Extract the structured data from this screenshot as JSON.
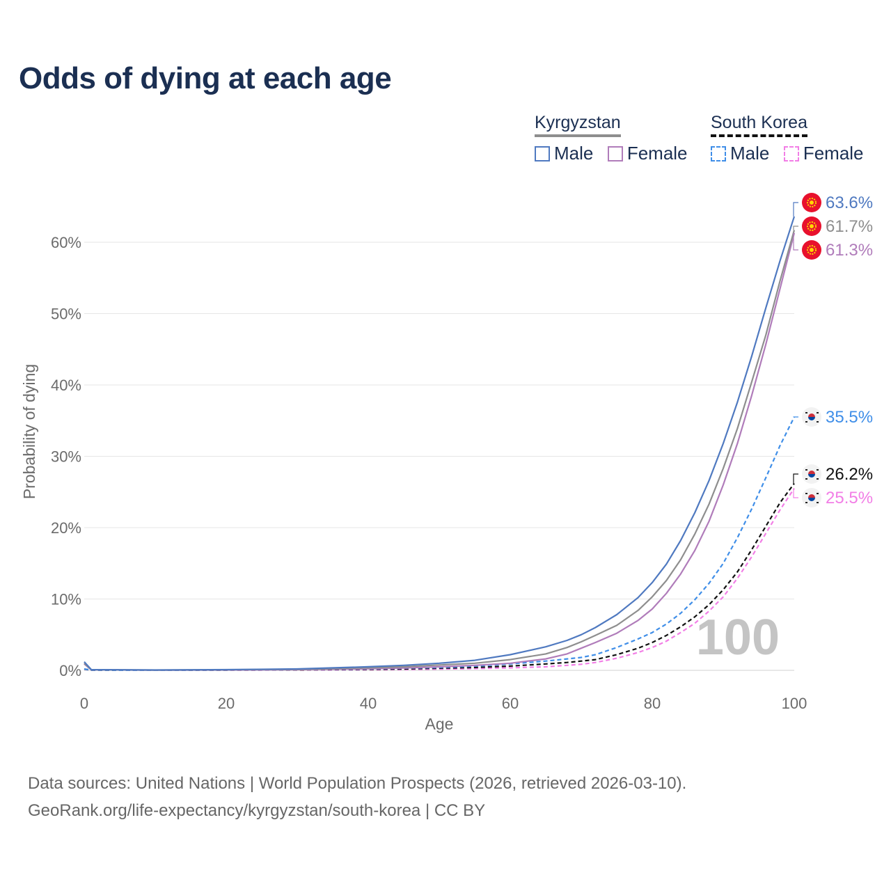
{
  "title": "Odds of dying at each age",
  "legend": {
    "groups": [
      {
        "country": "Kyrgyzstan",
        "country_line_color": "#8e8e8e",
        "items": [
          {
            "label": "Male",
            "color": "#4f79c0",
            "dashed": false
          },
          {
            "label": "Female",
            "color": "#b07cba",
            "dashed": false
          }
        ]
      },
      {
        "country": "South Korea",
        "country_line_color": "#111111",
        "items": [
          {
            "label": "Male",
            "color": "#3f8ee8",
            "dashed": true
          },
          {
            "label": "Female",
            "color": "#f27ee6",
            "dashed": true
          }
        ]
      }
    ]
  },
  "chart_data": {
    "type": "line",
    "title": "Odds of dying at each age",
    "xlabel": "Age",
    "ylabel": "Probability of dying",
    "xlim": [
      0,
      100
    ],
    "ylim": [
      0,
      65
    ],
    "x_ticks": [
      "0",
      "20",
      "40",
      "60",
      "80",
      "100"
    ],
    "x_tick_values": [
      0,
      20,
      40,
      60,
      80,
      100
    ],
    "y_ticks": [
      "0%",
      "10%",
      "20%",
      "30%",
      "40%",
      "50%",
      "60%"
    ],
    "y_tick_values": [
      0,
      10,
      20,
      30,
      40,
      50,
      60
    ],
    "grid": true,
    "x": [
      0,
      1,
      10,
      20,
      30,
      40,
      45,
      50,
      55,
      60,
      65,
      68,
      70,
      72,
      75,
      78,
      80,
      82,
      84,
      86,
      88,
      90,
      92,
      94,
      96,
      98,
      100
    ],
    "series": [
      {
        "name": "Kyrgyzstan Male",
        "color": "#4f79c0",
        "dashed": false,
        "values": [
          1.2,
          0.1,
          0.05,
          0.1,
          0.2,
          0.5,
          0.7,
          1.0,
          1.4,
          2.2,
          3.3,
          4.2,
          5.0,
          6.0,
          7.8,
          10.2,
          12.3,
          14.9,
          18.2,
          22.1,
          26.6,
          31.8,
          37.6,
          44.0,
          50.8,
          57.4,
          63.6
        ]
      },
      {
        "name": "Kyrgyzstan Total",
        "color": "#8e8e8e",
        "dashed": false,
        "values": [
          1.0,
          0.08,
          0.04,
          0.08,
          0.15,
          0.35,
          0.5,
          0.75,
          1.0,
          1.5,
          2.3,
          3.2,
          4.0,
          4.9,
          6.3,
          8.4,
          10.3,
          12.6,
          15.5,
          19.1,
          23.3,
          28.3,
          33.9,
          40.4,
          47.0,
          54.6,
          61.7
        ]
      },
      {
        "name": "Kyrgyzstan Female",
        "color": "#b07cba",
        "dashed": false,
        "values": [
          0.9,
          0.07,
          0.03,
          0.05,
          0.1,
          0.22,
          0.32,
          0.5,
          0.7,
          1.0,
          1.6,
          2.3,
          3.1,
          3.9,
          5.2,
          7.0,
          8.6,
          10.8,
          13.5,
          16.8,
          20.9,
          26.0,
          31.8,
          38.5,
          45.7,
          53.5,
          61.3
        ]
      },
      {
        "name": "South Korea Male",
        "color": "#3f8ee8",
        "dashed": true,
        "values": [
          0.2,
          0.02,
          0.01,
          0.05,
          0.1,
          0.2,
          0.3,
          0.4,
          0.6,
          0.9,
          1.3,
          1.6,
          1.8,
          2.2,
          3.2,
          4.4,
          5.3,
          6.5,
          8.0,
          9.9,
          12.2,
          15.0,
          18.6,
          22.6,
          27.0,
          31.5,
          35.5
        ]
      },
      {
        "name": "South Korea Total",
        "color": "#111111",
        "dashed": true,
        "values": [
          0.18,
          0.02,
          0.01,
          0.04,
          0.07,
          0.14,
          0.2,
          0.3,
          0.4,
          0.6,
          0.9,
          1.1,
          1.3,
          1.5,
          2.2,
          3.1,
          3.9,
          4.9,
          6.1,
          7.5,
          9.2,
          11.3,
          13.8,
          16.9,
          20.2,
          23.5,
          26.2
        ]
      },
      {
        "name": "South Korea Female",
        "color": "#f27ee6",
        "dashed": true,
        "values": [
          0.16,
          0.02,
          0.01,
          0.03,
          0.05,
          0.08,
          0.12,
          0.18,
          0.25,
          0.35,
          0.5,
          0.7,
          0.85,
          1.1,
          1.7,
          2.5,
          3.2,
          4.1,
          5.3,
          6.6,
          8.3,
          10.3,
          12.9,
          15.9,
          19.2,
          22.5,
          25.5
        ]
      }
    ],
    "end_labels": [
      {
        "text": "63.6%",
        "color": "#4f79c0",
        "value": 63.6,
        "flag": "kyrgyzstan-flag"
      },
      {
        "text": "61.7%",
        "color": "#8e8e8e",
        "value": 61.7,
        "flag": "kyrgyzstan-flag"
      },
      {
        "text": "61.3%",
        "color": "#b07cba",
        "value": 61.3,
        "flag": "kyrgyzstan-flag"
      },
      {
        "text": "35.5%",
        "color": "#3f8ee8",
        "value": 35.5,
        "flag": "south-korea-flag"
      },
      {
        "text": "26.2%",
        "color": "#111111",
        "value": 26.2,
        "flag": "south-korea-flag"
      },
      {
        "text": "25.5%",
        "color": "#f27ee6",
        "value": 25.5,
        "flag": "south-korea-flag"
      }
    ],
    "annotation": "100"
  },
  "source": {
    "line1": "Data sources: United Nations | World Population Prospects (2026, retrieved 2026-03-10).",
    "line2": "GeoRank.org/life-expectancy/kyrgyzstan/south-korea | CC BY"
  }
}
